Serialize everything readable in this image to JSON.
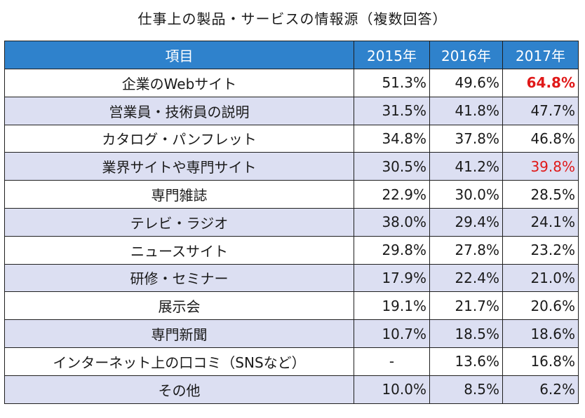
{
  "chart_data": {
    "type": "table",
    "title": "仕事上の製品・サービスの情報源（複数回答）",
    "columns": [
      "項目",
      "2015年",
      "2016年",
      "2017年"
    ],
    "rows": [
      {
        "item": "企業のWebサイト",
        "y2015": "51.3%",
        "y2016": "49.6%",
        "y2017": "64.8%",
        "highlight2017": "red-bold"
      },
      {
        "item": "営業員・技術員の説明",
        "y2015": "31.5%",
        "y2016": "41.8%",
        "y2017": "47.7%",
        "highlight2017": ""
      },
      {
        "item": "カタログ・パンフレット",
        "y2015": "34.8%",
        "y2016": "37.8%",
        "y2017": "46.8%",
        "highlight2017": ""
      },
      {
        "item": "業界サイトや専門サイト",
        "y2015": "30.5%",
        "y2016": "41.2%",
        "y2017": "39.8%",
        "highlight2017": "red"
      },
      {
        "item": "専門雑誌",
        "y2015": "22.9%",
        "y2016": "30.0%",
        "y2017": "28.5%",
        "highlight2017": ""
      },
      {
        "item": "テレビ・ラジオ",
        "y2015": "38.0%",
        "y2016": "29.4%",
        "y2017": "24.1%",
        "highlight2017": ""
      },
      {
        "item": "ニュースサイト",
        "y2015": "29.8%",
        "y2016": "27.8%",
        "y2017": "23.2%",
        "highlight2017": ""
      },
      {
        "item": "研修・セミナー",
        "y2015": "17.9%",
        "y2016": "22.4%",
        "y2017": "21.0%",
        "highlight2017": ""
      },
      {
        "item": "展示会",
        "y2015": "19.1%",
        "y2016": "21.7%",
        "y2017": "20.6%",
        "highlight2017": ""
      },
      {
        "item": "専門新聞",
        "y2015": "10.7%",
        "y2016": "18.5%",
        "y2017": "18.6%",
        "highlight2017": ""
      },
      {
        "item": "インターネット上の口コミ（SNSなど）",
        "y2015": "-",
        "y2016": "13.6%",
        "y2017": "16.8%",
        "highlight2017": ""
      },
      {
        "item": "その他",
        "y2015": "10.0%",
        "y2016": "8.5%",
        "y2017": "6.2%",
        "highlight2017": ""
      }
    ],
    "colors": {
      "header_bg": "#2f82cc",
      "alt_row_bg": "#dcdff2",
      "highlight": "#e01818"
    }
  }
}
